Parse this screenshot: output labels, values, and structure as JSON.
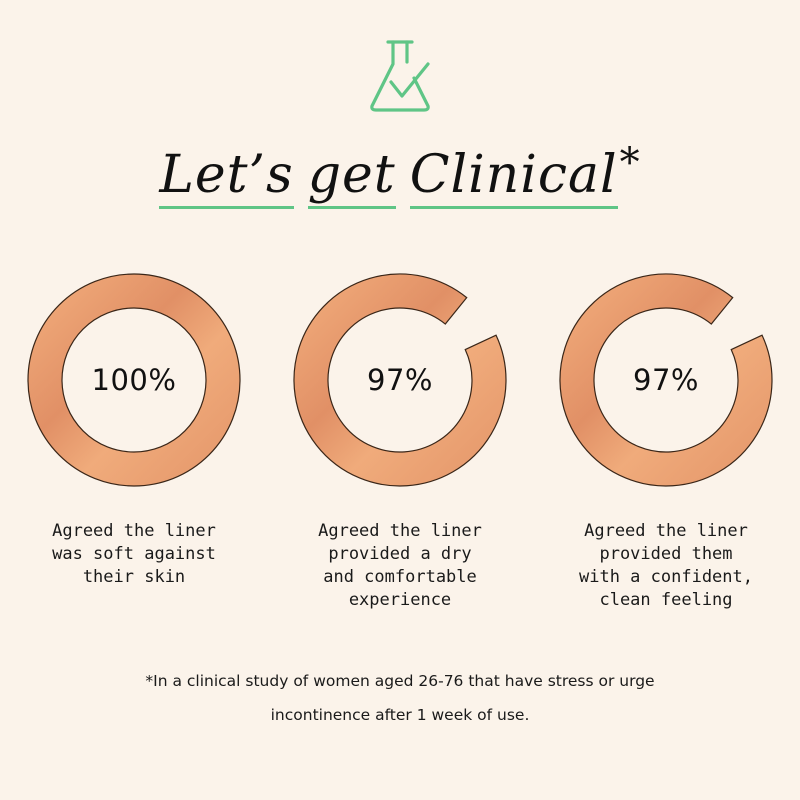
{
  "header": {
    "icon": "flask-check-icon",
    "icon_color": "#5FC586",
    "title_words": [
      "Let’s",
      "get",
      "Clinical"
    ],
    "title_mark": "*"
  },
  "chart_data": {
    "type": "donut",
    "value_unit": "%",
    "ring_color": "#E8A171",
    "items": [
      {
        "value": 100,
        "label": "100%",
        "caption": "Agreed the liner\nwas soft against\ntheir skin"
      },
      {
        "value": 97,
        "label": "97%",
        "caption": "Agreed the liner\nprovided a dry\nand comfortable\nexperience"
      },
      {
        "value": 97,
        "label": "97%",
        "caption": "Agreed the liner\nprovided them\nwith a confident,\nclean feeling"
      }
    ]
  },
  "footnote": "*In a clinical study of women aged 26-76 that have stress or urge\nincontinence after 1 week of use."
}
